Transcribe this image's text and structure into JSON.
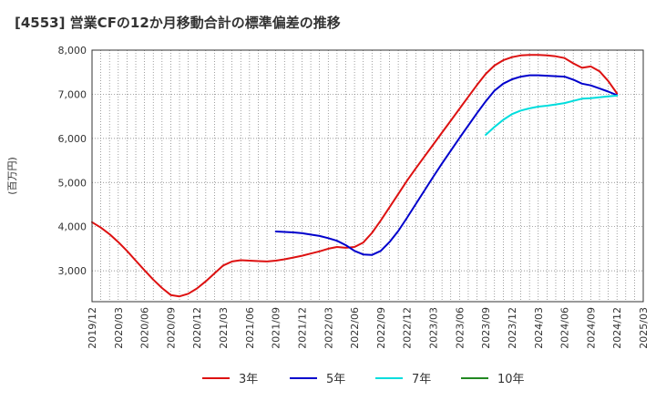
{
  "chart_data": {
    "type": "line",
    "title": "[4553]  営業CFの12か月移動合計の標準偏差の推移",
    "ylabel": "(百万円)",
    "xlabel": "",
    "ylim": [
      2300,
      8000
    ],
    "yticks": [
      3000,
      4000,
      5000,
      6000,
      7000,
      8000
    ],
    "ytick_labels": [
      "3,000",
      "4,000",
      "5,000",
      "6,000",
      "7,000",
      "8,000"
    ],
    "x_start": "2019/12",
    "x_end": "2025/03",
    "xtick_labels": [
      "2019/12",
      "2020/03",
      "2020/06",
      "2020/09",
      "2020/12",
      "2021/03",
      "2021/06",
      "2021/09",
      "2021/12",
      "2022/03",
      "2022/06",
      "2022/09",
      "2022/12",
      "2023/03",
      "2023/06",
      "2023/09",
      "2023/12",
      "2024/03",
      "2024/06",
      "2024/09",
      "2024/12",
      "2025/03"
    ],
    "grid": true,
    "legend_position": "bottom",
    "series": [
      {
        "name": "3年",
        "color": "#dd1111",
        "x": [
          "2019/12",
          "2020/01",
          "2020/02",
          "2020/03",
          "2020/04",
          "2020/05",
          "2020/06",
          "2020/07",
          "2020/08",
          "2020/09",
          "2020/10",
          "2020/11",
          "2020/12",
          "2021/01",
          "2021/02",
          "2021/03",
          "2021/04",
          "2021/05",
          "2021/06",
          "2021/07",
          "2021/08",
          "2021/09",
          "2021/10",
          "2021/11",
          "2021/12",
          "2022/01",
          "2022/02",
          "2022/03",
          "2022/04",
          "2022/05",
          "2022/06",
          "2022/07",
          "2022/08",
          "2022/09",
          "2022/10",
          "2022/11",
          "2022/12",
          "2023/01",
          "2023/02",
          "2023/03",
          "2023/04",
          "2023/05",
          "2023/06",
          "2023/07",
          "2023/08",
          "2023/09",
          "2023/10",
          "2023/11",
          "2023/12",
          "2024/01",
          "2024/02",
          "2024/03",
          "2024/04",
          "2024/05",
          "2024/06",
          "2024/07",
          "2024/08",
          "2024/09",
          "2024/10",
          "2024/11",
          "2024/12"
        ],
        "values": [
          4100,
          3980,
          3830,
          3650,
          3450,
          3230,
          3010,
          2800,
          2610,
          2450,
          2420,
          2480,
          2600,
          2760,
          2940,
          3120,
          3210,
          3240,
          3230,
          3220,
          3210,
          3230,
          3260,
          3300,
          3340,
          3390,
          3440,
          3500,
          3540,
          3520,
          3540,
          3640,
          3860,
          4140,
          4440,
          4740,
          5040,
          5320,
          5590,
          5860,
          6130,
          6400,
          6670,
          6940,
          7210,
          7460,
          7650,
          7770,
          7840,
          7880,
          7890,
          7890,
          7880,
          7860,
          7820,
          7700,
          7600,
          7630,
          7520,
          7300,
          7020
        ]
      },
      {
        "name": "5年",
        "color": "#0000cc",
        "x": [
          "2021/09",
          "2021/10",
          "2021/11",
          "2021/12",
          "2022/01",
          "2022/02",
          "2022/03",
          "2022/04",
          "2022/05",
          "2022/06",
          "2022/07",
          "2022/08",
          "2022/09",
          "2022/10",
          "2022/11",
          "2022/12",
          "2023/01",
          "2023/02",
          "2023/03",
          "2023/04",
          "2023/05",
          "2023/06",
          "2023/07",
          "2023/08",
          "2023/09",
          "2023/10",
          "2023/11",
          "2023/12",
          "2024/01",
          "2024/02",
          "2024/03",
          "2024/04",
          "2024/05",
          "2024/06",
          "2024/07",
          "2024/08",
          "2024/09",
          "2024/10",
          "2024/11",
          "2024/12"
        ],
        "values": [
          3890,
          3880,
          3870,
          3850,
          3820,
          3790,
          3740,
          3680,
          3580,
          3450,
          3370,
          3360,
          3450,
          3650,
          3900,
          4200,
          4510,
          4820,
          5130,
          5430,
          5720,
          6010,
          6290,
          6570,
          6840,
          7080,
          7240,
          7340,
          7400,
          7430,
          7430,
          7420,
          7410,
          7400,
          7330,
          7240,
          7200,
          7130,
          7060,
          6980
        ]
      },
      {
        "name": "7年",
        "color": "#00dddd",
        "x": [
          "2023/09",
          "2023/10",
          "2023/11",
          "2023/12",
          "2024/01",
          "2024/02",
          "2024/03",
          "2024/04",
          "2024/05",
          "2024/06",
          "2024/07",
          "2024/08",
          "2024/09",
          "2024/10",
          "2024/11",
          "2024/12"
        ],
        "values": [
          6080,
          6260,
          6420,
          6550,
          6630,
          6680,
          6720,
          6740,
          6770,
          6800,
          6850,
          6900,
          6910,
          6930,
          6950,
          6970
        ]
      },
      {
        "name": "10年",
        "color": "#228822",
        "x": [],
        "values": []
      }
    ]
  }
}
